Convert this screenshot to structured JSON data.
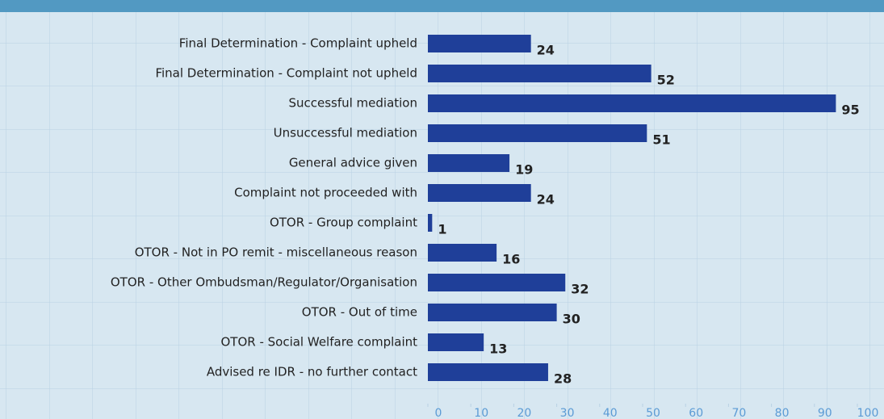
{
  "chart_data": {
    "type": "bar",
    "orientation": "horizontal",
    "categories": [
      "Final Determination - Complaint upheld",
      "Final Determination - Complaint not upheld",
      "Successful mediation",
      "Unsuccessful mediation",
      "General advice given",
      "Complaint not proceeded with",
      "OTOR - Group complaint",
      "OTOR - Not in PO remit - miscellaneous reason",
      "OTOR - Other Ombudsman/Regulator/Organisation",
      "OTOR - Out of time",
      "OTOR - Social Welfare complaint",
      "Advised re IDR - no further contact"
    ],
    "values": [
      24,
      52,
      95,
      51,
      19,
      24,
      1,
      16,
      32,
      30,
      13,
      28
    ],
    "color": "#1f3f99",
    "xlim": [
      0,
      100
    ],
    "xticks": [
      0,
      10,
      20,
      30,
      40,
      50,
      60,
      70,
      80,
      90,
      100
    ]
  }
}
